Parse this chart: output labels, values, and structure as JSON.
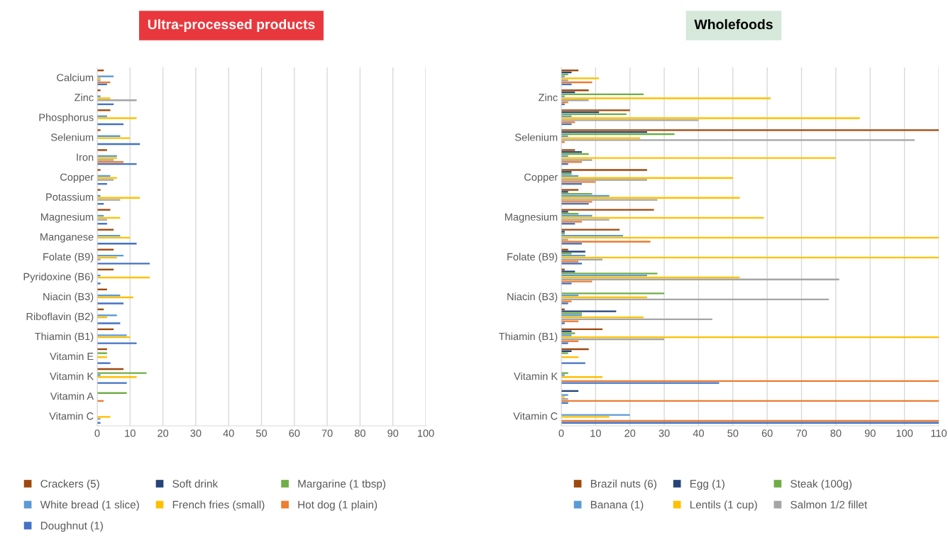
{
  "chart_data": [
    {
      "type": "bar",
      "orientation": "horizontal",
      "title": "Ultra-processed products",
      "categories": [
        "Calcium",
        "Zinc",
        "Phosphorus",
        "Selenium",
        "Iron",
        "Copper",
        "Potassium",
        "Magnesium",
        "Manganese",
        "Folate (B9)",
        "Pyridoxine (B6)",
        "Niacin (B3)",
        "Riboflavin (B2)",
        "Thiamin (B1)",
        "Vitamin E",
        "Vitamin K",
        "Vitamin A",
        "Vitamin C"
      ],
      "xlim": [
        0,
        100
      ],
      "xticks": [
        0,
        10,
        20,
        30,
        40,
        50,
        60,
        70,
        80,
        90,
        100
      ],
      "grid": "x",
      "legend": "bottom",
      "series": [
        {
          "name": "Crackers (5)",
          "color": "#9e480e",
          "values": [
            2,
            1,
            4,
            1,
            3,
            1,
            1,
            4,
            5,
            5,
            5,
            3,
            2,
            5,
            3,
            8,
            0,
            0
          ]
        },
        {
          "name": "Soft drink",
          "color": "#264478",
          "values": [
            0,
            0,
            0,
            0,
            0,
            0,
            0,
            0,
            0,
            0,
            0,
            0,
            0,
            0,
            0,
            0,
            0,
            0
          ]
        },
        {
          "name": "Margarine (1 tbsp)",
          "color": "#70ad47",
          "values": [
            0,
            0,
            0,
            0,
            0,
            0,
            0,
            0,
            0,
            0,
            0,
            0,
            0,
            0,
            3,
            15,
            9,
            0
          ]
        },
        {
          "name": "White bread (1 slice)",
          "color": "#5b9bd5",
          "values": [
            5,
            1,
            3,
            7,
            6,
            4,
            1,
            2,
            7,
            8,
            1,
            7,
            6,
            9,
            0,
            1,
            0,
            0
          ]
        },
        {
          "name": "French fries (small)",
          "color": "#ffc000",
          "values": [
            1,
            4,
            12,
            10,
            6,
            6,
            13,
            7,
            10,
            6,
            16,
            11,
            3,
            10,
            3,
            12,
            0,
            4
          ]
        },
        {
          "color": "#a5a5a5",
          "values": [
            1,
            12,
            0,
            0,
            5,
            5,
            7,
            3,
            0,
            1,
            0,
            0,
            0,
            0,
            0,
            0,
            0,
            1
          ]
        },
        {
          "name": "Hot dog (1 plain)",
          "color": "#ed7d31",
          "values": [
            4,
            0,
            0,
            0,
            8,
            0,
            0,
            0,
            0,
            0,
            0,
            0,
            0,
            0,
            0,
            0,
            2,
            0
          ]
        },
        {
          "name": "Doughnut (1)",
          "color": "#4472c4",
          "values": [
            3,
            5,
            8,
            13,
            12,
            3,
            2,
            3,
            12,
            16,
            1,
            8,
            7,
            12,
            4,
            9,
            0,
            1
          ]
        }
      ]
    },
    {
      "type": "bar",
      "orientation": "horizontal",
      "title": "Wholefoods",
      "categories": [
        null,
        "Zinc",
        null,
        "Selenium",
        null,
        "Copper",
        null,
        "Magnesium",
        null,
        "Folate (B9)",
        null,
        "Niacin (B3)",
        null,
        "Thiamin (B1)",
        null,
        "Vitamin K",
        null,
        "Vitamin C"
      ],
      "xlim": [
        0,
        110
      ],
      "xticks": [
        0,
        10,
        20,
        30,
        40,
        50,
        60,
        70,
        80,
        90,
        100,
        110
      ],
      "grid": "x",
      "legend": "bottom",
      "series": [
        {
          "name": "Brazil nuts (6)",
          "color": "#9e480e",
          "values": [
            5,
            8,
            20,
            110,
            4,
            25,
            5,
            27,
            17,
            2,
            1,
            0,
            1,
            12,
            8,
            0,
            0,
            0
          ]
        },
        {
          "name": "Egg (1)",
          "color": "#264478",
          "values": [
            3,
            4,
            11,
            25,
            6,
            3,
            2,
            2,
            1,
            7,
            4,
            0,
            16,
            3,
            3,
            0,
            5,
            0
          ]
        },
        {
          "name": "Steak (100g)",
          "color": "#70ad47",
          "values": [
            2,
            24,
            19,
            33,
            8,
            3,
            9,
            5,
            1,
            3,
            28,
            30,
            6,
            4,
            2,
            2,
            0,
            0
          ]
        },
        {
          "name": "Banana (1)",
          "color": "#5b9bd5",
          "values": [
            1,
            1,
            3,
            2,
            2,
            5,
            14,
            9,
            18,
            7,
            25,
            5,
            6,
            3,
            0,
            1,
            2,
            20
          ]
        },
        {
          "name": "Lentils (1 cup)",
          "color": "#ffc000",
          "values": [
            11,
            61,
            87,
            23,
            80,
            50,
            52,
            59,
            110,
            110,
            52,
            25,
            24,
            110,
            5,
            12,
            1,
            14
          ]
        },
        {
          "name": "Salmon 1/2 fillet",
          "color": "#a5a5a5",
          "values": [
            2,
            8,
            40,
            103,
            9,
            25,
            28,
            14,
            2,
            12,
            81,
            78,
            44,
            30,
            0,
            0,
            2,
            0
          ]
        },
        {
          "color": "#ed7d31",
          "values": [
            9,
            2,
            4,
            1,
            6,
            10,
            9,
            6,
            26,
            5,
            9,
            3,
            5,
            5,
            0,
            110,
            110,
            110
          ]
        },
        {
          "color": "#4472c4",
          "values": [
            3,
            1,
            3,
            0,
            2,
            6,
            8,
            4,
            6,
            6,
            3,
            2,
            1,
            2,
            7,
            46,
            2,
            110
          ]
        }
      ]
    }
  ]
}
